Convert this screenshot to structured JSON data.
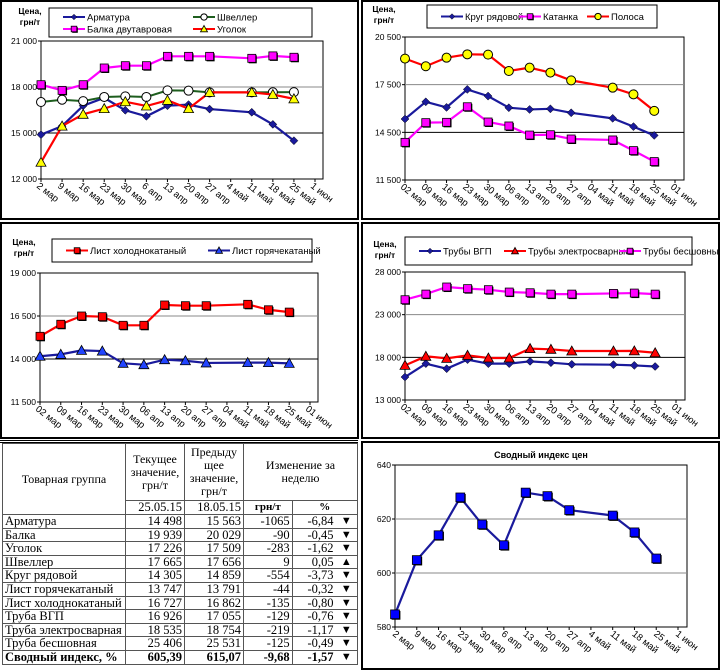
{
  "chart_data": [
    {
      "type": "line",
      "ylabel": "Цена, грн/т",
      "ylim": [
        12000,
        21000
      ],
      "yticks": [
        12000,
        15000,
        18000,
        21000
      ],
      "ytick_labels": [
        "12 000",
        "15 000",
        "18 000",
        "21 000"
      ],
      "grid": "horizontal",
      "legend": "top",
      "categories": [
        "2 мар",
        "9 мар",
        "16 мар",
        "23 мар",
        "30 мар",
        "6 апр",
        "13 апр",
        "20 апр",
        "27 апр",
        "4 май",
        "11 май",
        "18 май",
        "25 май",
        "1 июн"
      ],
      "series": [
        {
          "name": "Арматура",
          "color": "#1a1a9c",
          "marker": "diamond",
          "values": [
            14890,
            15450,
            16780,
            17290,
            16480,
            16090,
            16780,
            16850,
            16560,
            null,
            16350,
            15563,
            14498,
            null
          ]
        },
        {
          "name": "Швеллер",
          "color": "#1e5e1e",
          "marker": "circle-open",
          "values": [
            17020,
            17170,
            17080,
            17350,
            17390,
            17350,
            17780,
            17760,
            17650,
            null,
            17650,
            17656,
            17665,
            null
          ]
        },
        {
          "name": "Балка двутавровая",
          "color": "#ff00ff",
          "marker": "square",
          "values": [
            18150,
            17780,
            18150,
            19240,
            19390,
            19390,
            20000,
            20000,
            20000,
            null,
            19870,
            20029,
            19939,
            null
          ]
        },
        {
          "name": "Уголок",
          "color": "#ff0000",
          "marker": "triangle-yellow",
          "values": [
            13090,
            15450,
            16220,
            16590,
            17040,
            16760,
            17130,
            16590,
            17650,
            null,
            17650,
            17509,
            17226,
            null
          ]
        }
      ]
    },
    {
      "type": "line",
      "ylabel": "Цена, грн/т",
      "ylim": [
        11500,
        20500
      ],
      "yticks": [
        11500,
        14500,
        17500,
        20500
      ],
      "ytick_labels": [
        "11 500",
        "14 500",
        "17 500",
        "20 500"
      ],
      "grid": "horizontal",
      "legend": "top",
      "categories": [
        "02 мар",
        "09 мар",
        "16 мар",
        "23 мар",
        "30 мар",
        "06 апр",
        "13 апр",
        "20 апр",
        "27 апр",
        "04 май",
        "11 май",
        "18 май",
        "25 май",
        "01 июн"
      ],
      "series": [
        {
          "name": "Круг рядовой",
          "color": "#1a1a9c",
          "marker": "diamond",
          "values": [
            15340,
            16420,
            16070,
            17200,
            16780,
            16050,
            15940,
            15980,
            15730,
            null,
            15380,
            14859,
            14305,
            null
          ]
        },
        {
          "name": "Катанка",
          "color": "#ff00ff",
          "marker": "square",
          "values": [
            13870,
            15110,
            15130,
            16110,
            15150,
            14900,
            14330,
            14350,
            14080,
            null,
            14020,
            13350,
            12660,
            null
          ]
        },
        {
          "name": "Полоса",
          "color": "#ff0000",
          "marker": "circle-yellow",
          "values": [
            19140,
            18660,
            19200,
            19410,
            19390,
            18360,
            18570,
            18260,
            17770,
            null,
            17310,
            16890,
            15850,
            null
          ]
        }
      ]
    },
    {
      "type": "line",
      "ylabel": "Цена, грн/т",
      "ylim": [
        11500,
        19000
      ],
      "yticks": [
        11500,
        14000,
        16500,
        19000
      ],
      "ytick_labels": [
        "11 500",
        "14 000",
        "16 500",
        "19 000"
      ],
      "grid": "horizontal",
      "legend": "top",
      "categories": [
        "02 мар",
        "09 мар",
        "16 мар",
        "23 мар",
        "30 мар",
        "06 апр",
        "13 апр",
        "20 апр",
        "27 апр",
        "04 май",
        "11 май",
        "18 май",
        "25 май",
        "01 июн"
      ],
      "series": [
        {
          "name": "Лист холоднокатаный",
          "color": "#ff0000",
          "marker": "square",
          "values": [
            15320,
            16020,
            16500,
            16460,
            15960,
            15960,
            17140,
            17100,
            17100,
            null,
            17180,
            16862,
            16727,
            null
          ]
        },
        {
          "name": "Лист горячекатаный",
          "color": "#1a1a9c",
          "marker": "triangle-blue",
          "values": [
            14160,
            14270,
            14500,
            14460,
            13750,
            13670,
            13960,
            13900,
            13770,
            null,
            13790,
            13791,
            13747,
            null
          ]
        }
      ]
    },
    {
      "type": "line",
      "ylabel": "Цена, грн/т",
      "ylim": [
        13000,
        28000
      ],
      "yticks": [
        13000,
        18000,
        23000,
        28000
      ],
      "ytick_labels": [
        "13 000",
        "18 000",
        "23 000",
        "28 000"
      ],
      "grid": "horizontal",
      "legend": "top",
      "categories": [
        "02 мар",
        "09 мар",
        "16 мар",
        "23 мар",
        "30 мар",
        "06 апр",
        "13 апр",
        "20 апр",
        "27 апр",
        "04 май",
        "11 май",
        "18 май",
        "25 май",
        "01 июн"
      ],
      "series": [
        {
          "name": "Трубы ВГП",
          "color": "#1a1a9c",
          "marker": "diamond",
          "values": [
            15690,
            17260,
            16670,
            17730,
            17260,
            17260,
            17530,
            17370,
            17180,
            null,
            17140,
            17055,
            16926,
            null
          ]
        },
        {
          "name": "Трубы электросварные",
          "color": "#ff0000",
          "marker": "triangle-red",
          "values": [
            17060,
            18120,
            17880,
            18230,
            17920,
            17920,
            19020,
            18940,
            18740,
            null,
            18740,
            18754,
            18535,
            null
          ]
        },
        {
          "name": "Трубы бесшовные",
          "color": "#ff00ff",
          "marker": "square",
          "values": [
            24750,
            25410,
            26240,
            26050,
            25930,
            25650,
            25570,
            25410,
            25410,
            null,
            25490,
            25531,
            25406,
            null
          ]
        }
      ]
    },
    {
      "type": "line",
      "title": "Сводный индекс цен",
      "ylim": [
        580,
        640
      ],
      "yticks": [
        580,
        600,
        620,
        640
      ],
      "ytick_labels": [
        "580",
        "600",
        "620",
        "640"
      ],
      "grid": "horizontal",
      "categories": [
        "2 мар",
        "9 мар",
        "16 мар",
        "23 мар",
        "30 мар",
        "6 апр",
        "13 апр",
        "20 апр",
        "27 апр",
        "4 май",
        "11 май",
        "18 май",
        "25 май",
        "1 июн"
      ],
      "series": [
        {
          "color": "#1a1a9c",
          "marker": "square-blue",
          "values": [
            584.7,
            604.8,
            614.0,
            628.0,
            618.0,
            610.3,
            629.8,
            628.5,
            623.3,
            null,
            621.3,
            615.07,
            605.39,
            null
          ]
        }
      ]
    }
  ],
  "table": {
    "headers": {
      "group": "Товарная группа",
      "current": "Текущее значение, грн/т",
      "previous": "Предыду щее значение, грн/т",
      "change": "Изменение за неделю",
      "current_date": "25.05.15",
      "previous_date": "18.05.15",
      "unit": "грн/т",
      "percent": "%"
    },
    "rows": [
      [
        "Арматура",
        "14 498",
        "15 563",
        "-1065",
        "-6,84",
        "▼"
      ],
      [
        "Балка",
        "19 939",
        "20 029",
        "-90",
        "-0,45",
        "▼"
      ],
      [
        "Уголок",
        "17 226",
        "17 509",
        "-283",
        "-1,62",
        "▼"
      ],
      [
        "Швеллер",
        "17 665",
        "17 656",
        "9",
        "0,05",
        "▲"
      ],
      [
        "Круг рядовой",
        "14 305",
        "14 859",
        "-554",
        "-3,73",
        "▼"
      ],
      [
        "Лист горячекатаный",
        "13 747",
        "13 791",
        "-44",
        "-0,32",
        "▼"
      ],
      [
        "Лист холоднокатаный",
        "16 727",
        "16 862",
        "-135",
        "-0,80",
        "▼"
      ],
      [
        "Труба ВГП",
        "16 926",
        "17 055",
        "-129",
        "-0,76",
        "▼"
      ],
      [
        "Труба электросварная",
        "18 535",
        "18 754",
        "-219",
        "-1,17",
        "▼"
      ],
      [
        "Труба бесшовная",
        "25 406",
        "25 531",
        "-125",
        "-0,49",
        "▼"
      ]
    ],
    "total": [
      "Сводный индекс, %",
      "605,39",
      "615,07",
      "-9,68",
      "-1,57",
      "▼"
    ]
  }
}
